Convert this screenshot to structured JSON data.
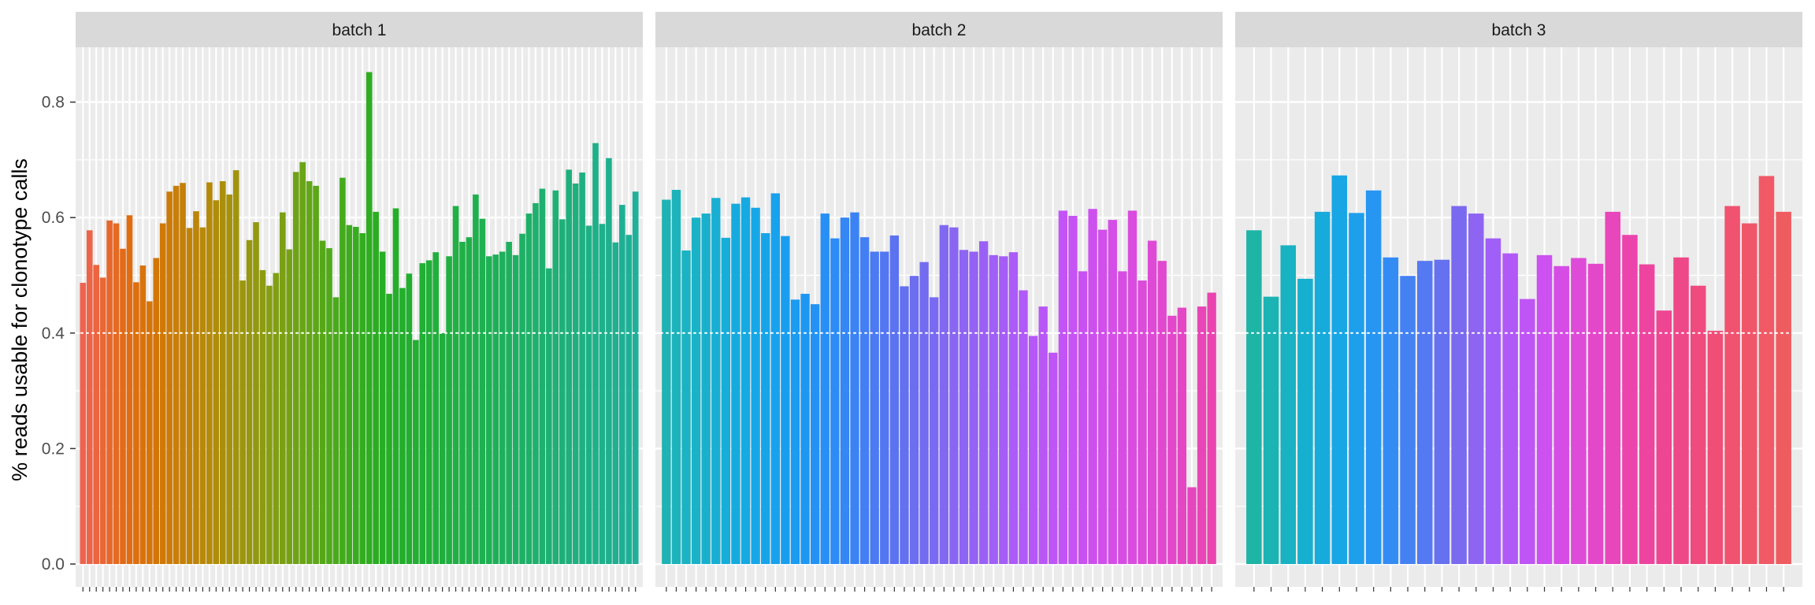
{
  "chart_data": {
    "type": "bar",
    "title": "",
    "xlabel": "",
    "ylabel": "% reads usable for clonotype calls",
    "ylim": [
      0,
      0.9
    ],
    "yticks": [
      "0.0",
      "0.2",
      "0.4",
      "0.6",
      "0.8"
    ],
    "ytick_values": [
      0.0,
      0.2,
      0.4,
      0.6,
      0.8
    ],
    "grid": true,
    "legend": "none",
    "reference_line": 0.4,
    "reference_line_style": "dotted",
    "colors": {
      "panel_background": "#ebebeb",
      "strip_background": "#d9d9d9",
      "gridline": "#ffffff",
      "reference_line": "#ffffff"
    },
    "panels": [
      {
        "label": "batch 1",
        "values": [
          0.487,
          0.578,
          0.518,
          0.496,
          0.595,
          0.59,
          0.546,
          0.604,
          0.488,
          0.517,
          0.455,
          0.53,
          0.59,
          0.645,
          0.655,
          0.66,
          0.582,
          0.611,
          0.583,
          0.661,
          0.63,
          0.663,
          0.64,
          0.682,
          0.491,
          0.561,
          0.592,
          0.509,
          0.482,
          0.504,
          0.609,
          0.545,
          0.679,
          0.696,
          0.663,
          0.655,
          0.56,
          0.547,
          0.462,
          0.669,
          0.587,
          0.584,
          0.573,
          0.852,
          0.61,
          0.541,
          0.468,
          0.616,
          0.478,
          0.503,
          0.388,
          0.521,
          0.526,
          0.54,
          0.4,
          0.533,
          0.62,
          0.558,
          0.566,
          0.64,
          0.598,
          0.533,
          0.536,
          0.541,
          0.558,
          0.535,
          0.572,
          0.607,
          0.625,
          0.65,
          0.512,
          0.647,
          0.597,
          0.683,
          0.659,
          0.678,
          0.586,
          0.729,
          0.589,
          0.703,
          0.557,
          0.622,
          0.57,
          0.645
        ],
        "colors": [
          "#ee6350",
          "#ed6448",
          "#eb6540",
          "#e96736",
          "#e7682c",
          "#e56a22",
          "#e26b18",
          "#e06d12",
          "#dd6f0e",
          "#da720b",
          "#d77409",
          "#d37608",
          "#d07908",
          "#cc7b08",
          "#c87e08",
          "#c48008",
          "#c08308",
          "#bc8508",
          "#b88809",
          "#b48a09",
          "#af8d0a",
          "#ab8f0b",
          "#a6910c",
          "#a1930d",
          "#9c950e",
          "#97970f",
          "#929910",
          "#8c9b11",
          "#879d12",
          "#819f13",
          "#7ba014",
          "#75a215",
          "#6fa316",
          "#69a517",
          "#63a618",
          "#5da719",
          "#56a81a",
          "#50a91b",
          "#4aaa1c",
          "#44ab1d",
          "#3eab1e",
          "#38ac1f",
          "#33ad20",
          "#2ead21",
          "#2aad22",
          "#27ae24",
          "#25ae26",
          "#24ae29",
          "#23ae2c",
          "#22ae2f",
          "#22af32",
          "#21af35",
          "#21af38",
          "#21af3b",
          "#20af3e",
          "#20b041",
          "#20b044",
          "#1fb047",
          "#1fb04a",
          "#1fb04e",
          "#1fb051",
          "#1fb054",
          "#1eb058",
          "#1eb05b",
          "#1eb05e",
          "#1eb062",
          "#1eb065",
          "#1eb068",
          "#1eb06c",
          "#1eb06f",
          "#1eb072",
          "#1eb075",
          "#1eb079",
          "#1eb07c",
          "#1eb07f",
          "#1eb082",
          "#1eb085",
          "#1eb088",
          "#1eb08b",
          "#1eb08e",
          "#1eb091",
          "#1eb094",
          "#1eb097",
          "#1eb09a"
        ]
      },
      {
        "label": "batch 2",
        "values": [
          0.631,
          0.648,
          0.543,
          0.6,
          0.607,
          0.634,
          0.565,
          0.624,
          0.635,
          0.617,
          0.573,
          0.642,
          0.568,
          0.458,
          0.468,
          0.45,
          0.607,
          0.564,
          0.6,
          0.609,
          0.566,
          0.541,
          0.541,
          0.569,
          0.481,
          0.499,
          0.523,
          0.462,
          0.587,
          0.583,
          0.544,
          0.541,
          0.559,
          0.535,
          0.533,
          0.54,
          0.474,
          0.395,
          0.446,
          0.366,
          0.612,
          0.603,
          0.507,
          0.615,
          0.579,
          0.596,
          0.507,
          0.612,
          0.491,
          0.56,
          0.525,
          0.43,
          0.444,
          0.133,
          0.446,
          0.47
        ],
        "colors": [
          "#1eb3b5",
          "#1db3bb",
          "#1bb3c1",
          "#1ab2c7",
          "#19b0cd",
          "#18afd3",
          "#17add9",
          "#16abde",
          "#16a9e2",
          "#16a7e6",
          "#17a4e9",
          "#18a1ec",
          "#199eef",
          "#1b9bf1",
          "#1e97f3",
          "#2293f4",
          "#278ff5",
          "#2d8bf5",
          "#3487f5",
          "#3b83f5",
          "#437ef4",
          "#4b7af3",
          "#5376f2",
          "#5b72f1",
          "#6370f0",
          "#6b6ef0",
          "#736cf0",
          "#7a6af1",
          "#8168f1",
          "#8866f2",
          "#8e64f3",
          "#9462f4",
          "#9a60f5",
          "#a05ff6",
          "#a55df6",
          "#ab5bf7",
          "#b05af7",
          "#b558f7",
          "#b957f6",
          "#be55f6",
          "#c254f5",
          "#c653f3",
          "#ca51f1",
          "#cd50ee",
          "#d14feb",
          "#d44ee7",
          "#d74de3",
          "#d94cdf",
          "#dc4bda",
          "#de4ad5",
          "#e049cf",
          "#e248c9",
          "#e447c3",
          "#e646bd",
          "#e845b6",
          "#ea44af"
        ]
      },
      {
        "label": "batch 3",
        "values": [
          0.578,
          0.463,
          0.552,
          0.494,
          0.61,
          0.673,
          0.608,
          0.647,
          0.531,
          0.499,
          0.525,
          0.527,
          0.62,
          0.607,
          0.564,
          0.538,
          0.459,
          0.535,
          0.516,
          0.53,
          0.52,
          0.61,
          0.57,
          0.519,
          0.439,
          0.531,
          0.482,
          0.404,
          0.62,
          0.59,
          0.672,
          0.61
        ],
        "colors": [
          "#1eb4a6",
          "#1cb3b4",
          "#19b2c2",
          "#17afcf",
          "#16abdb",
          "#18a6e5",
          "#1d9fec",
          "#2696f2",
          "#338cf4",
          "#4482f4",
          "#5579f2",
          "#6671f0",
          "#7a6af0",
          "#8d65f2",
          "#a05ff6",
          "#b059f7",
          "#bf55f5",
          "#cc51f0",
          "#d64de6",
          "#de4bd8",
          "#e448ca",
          "#e846bb",
          "#eb45ad",
          "#ed459f",
          "#ee4693",
          "#ef4889",
          "#ef4b7f",
          "#f04e77",
          "#f05270",
          "#f0566a",
          "#f05965",
          "#ef5c60"
        ]
      }
    ]
  }
}
